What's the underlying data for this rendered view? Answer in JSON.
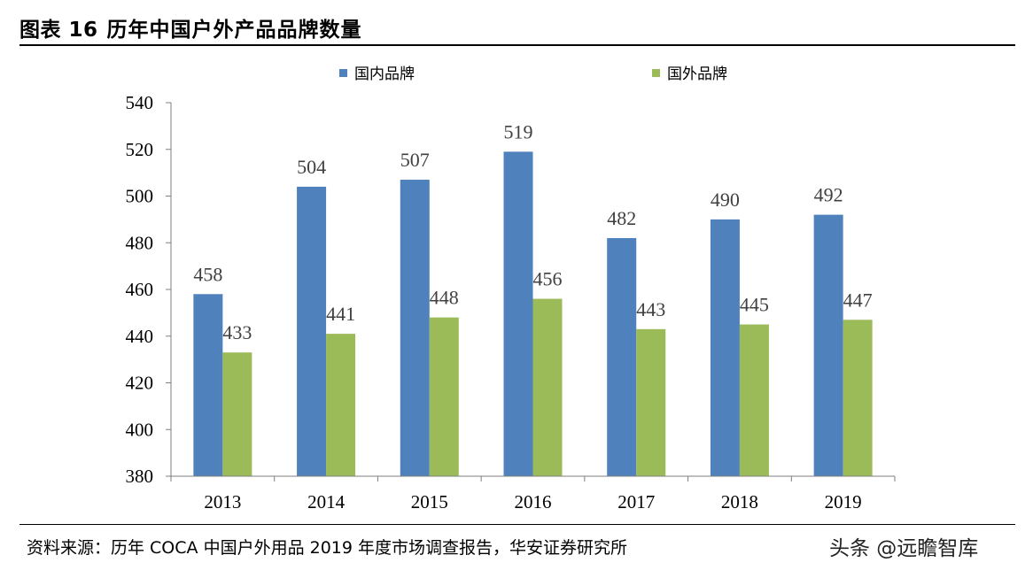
{
  "figure": {
    "label": "图表 16",
    "title": "历年中国户外产品品牌数量"
  },
  "source_note": "资料来源：历年 COCA 中国户外用品 2019 年度市场调查报告，华安证券研究所",
  "watermark": "头条 @远瞻智库",
  "colors": {
    "domestic": "#4F81BD",
    "foreign": "#9BBB59",
    "axis": "#7f7f7f",
    "label_text": "#404040"
  },
  "chart_data": {
    "type": "bar",
    "title": "",
    "xlabel": "",
    "ylabel": "",
    "categories": [
      "2013",
      "2014",
      "2015",
      "2016",
      "2017",
      "2018",
      "2019"
    ],
    "series": [
      {
        "name": "国内品牌",
        "values": [
          458,
          504,
          507,
          519,
          482,
          490,
          492
        ]
      },
      {
        "name": "国外品牌",
        "values": [
          433,
          441,
          448,
          456,
          443,
          445,
          447
        ]
      }
    ],
    "ylim": [
      380,
      540
    ],
    "yticks": [
      380,
      400,
      420,
      440,
      460,
      480,
      500,
      520,
      540
    ],
    "grid": false,
    "legend_position": "top",
    "data_labels": true
  }
}
